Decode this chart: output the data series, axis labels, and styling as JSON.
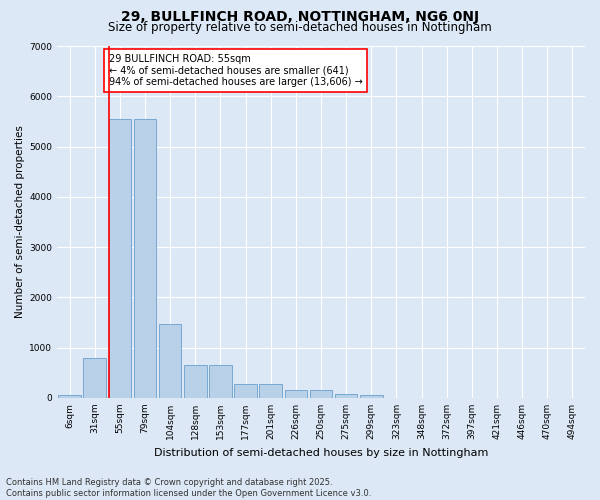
{
  "title": "29, BULLFINCH ROAD, NOTTINGHAM, NG6 0NJ",
  "subtitle": "Size of property relative to semi-detached houses in Nottingham",
  "xlabel": "Distribution of semi-detached houses by size in Nottingham",
  "ylabel": "Number of semi-detached properties",
  "categories": [
    "6sqm",
    "31sqm",
    "55sqm",
    "79sqm",
    "104sqm",
    "128sqm",
    "153sqm",
    "177sqm",
    "201sqm",
    "226sqm",
    "250sqm",
    "275sqm",
    "299sqm",
    "323sqm",
    "348sqm",
    "372sqm",
    "397sqm",
    "421sqm",
    "446sqm",
    "470sqm",
    "494sqm"
  ],
  "values": [
    50,
    800,
    5550,
    5550,
    1480,
    650,
    650,
    280,
    270,
    150,
    150,
    80,
    50,
    0,
    0,
    0,
    0,
    0,
    0,
    0,
    0
  ],
  "bar_color": "#b8d0e8",
  "bar_edge_color": "#6aa0cc",
  "red_line_index": 2,
  "annotation_title": "29 BULLFINCH ROAD: 55sqm",
  "annotation_line2": "← 4% of semi-detached houses are smaller (641)",
  "annotation_line3": "94% of semi-detached houses are larger (13,606) →",
  "ylim": [
    0,
    7000
  ],
  "yticks": [
    0,
    1000,
    2000,
    3000,
    4000,
    5000,
    6000,
    7000
  ],
  "footer1": "Contains HM Land Registry data © Crown copyright and database right 2025.",
  "footer2": "Contains public sector information licensed under the Open Government Licence v3.0.",
  "bg_color": "#dce8f5",
  "plot_bg_color": "#dce8f5",
  "title_fontsize": 10,
  "subtitle_fontsize": 8.5,
  "ylabel_fontsize": 7.5,
  "xlabel_fontsize": 8,
  "tick_fontsize": 6.5,
  "footer_fontsize": 6,
  "annotation_fontsize": 7
}
